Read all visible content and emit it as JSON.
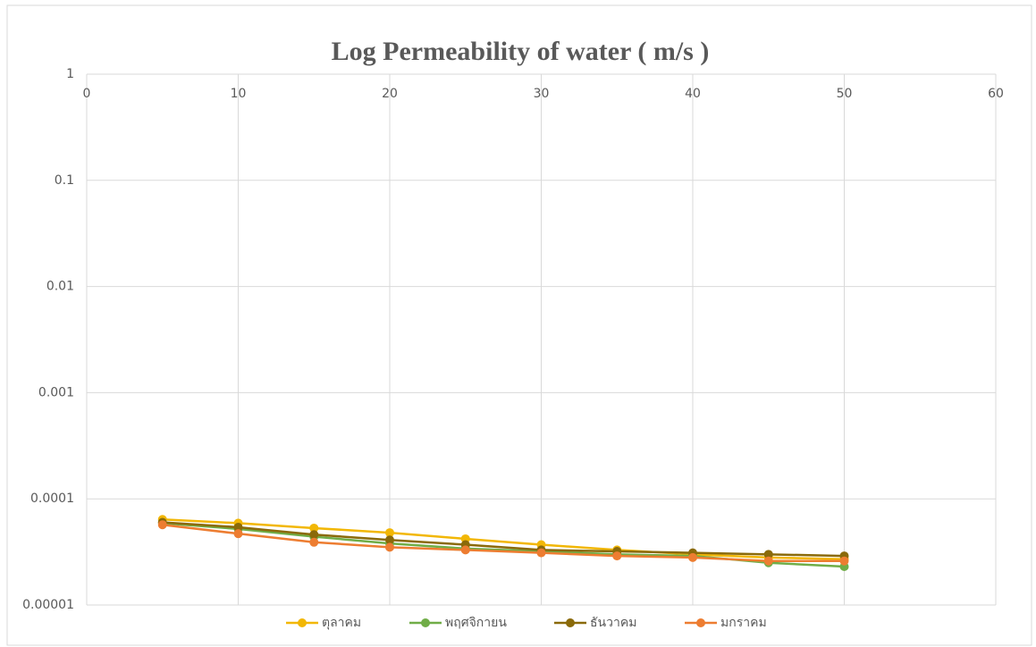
{
  "chart_data": {
    "type": "line",
    "title": "Log Permeability of water ( m/s )",
    "x": [
      5,
      10,
      15,
      20,
      25,
      30,
      35,
      40,
      45,
      50
    ],
    "series": [
      {
        "name": "ตุลาคม",
        "color": "#f2b705",
        "values": [
          6.4e-05,
          5.9e-05,
          5.3e-05,
          4.8e-05,
          4.2e-05,
          3.7e-05,
          3.3e-05,
          3e-05,
          2.8e-05,
          2.7e-05
        ]
      },
      {
        "name": "พฤศจิกายน",
        "color": "#70ad47",
        "values": [
          5.9e-05,
          5.2e-05,
          4.4e-05,
          3.8e-05,
          3.4e-05,
          3.2e-05,
          3e-05,
          2.9e-05,
          2.5e-05,
          2.3e-05
        ]
      },
      {
        "name": "ธันวาคม",
        "color": "#8a6a0a",
        "values": [
          6e-05,
          5.4e-05,
          4.6e-05,
          4.1e-05,
          3.7e-05,
          3.3e-05,
          3.2e-05,
          3.1e-05,
          3e-05,
          2.9e-05
        ]
      },
      {
        "name": "มกราคม",
        "color": "#ed7d31",
        "values": [
          5.7e-05,
          4.7e-05,
          3.9e-05,
          3.5e-05,
          3.3e-05,
          3.1e-05,
          2.9e-05,
          2.8e-05,
          2.6e-05,
          2.6e-05
        ]
      }
    ],
    "xlim": [
      0,
      60
    ],
    "xticks": [
      0,
      10,
      20,
      30,
      40,
      50,
      60
    ],
    "ylim": [
      1e-05,
      1
    ],
    "yticks": [
      1e-05,
      0.0001,
      0.001,
      0.01,
      0.1,
      1
    ],
    "log_y": true,
    "grid": true,
    "legend": "bottom"
  }
}
